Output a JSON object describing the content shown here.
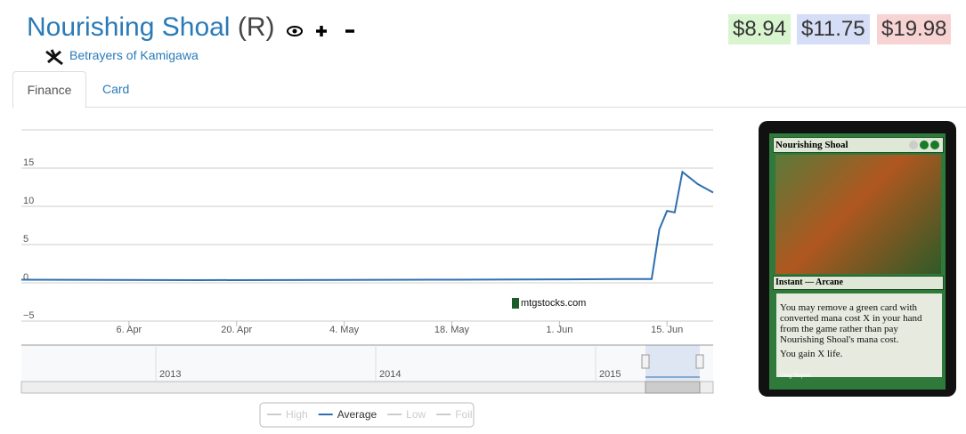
{
  "header": {
    "title": "Nourishing Shoal",
    "rarity": "(R)",
    "set": "Betrayers of Kamigawa",
    "prices": [
      "$8.94",
      "$11.75",
      "$19.98"
    ]
  },
  "tabs": [
    "Finance",
    "Card"
  ],
  "chart_data": {
    "type": "line",
    "x": [
      "03-23",
      "04-15",
      "05-15",
      "06-01",
      "06-09",
      "06-13",
      "06-14",
      "06-15",
      "06-16",
      "06-17",
      "06-19",
      "06-21"
    ],
    "xlim": [
      "03-23",
      "06-21"
    ],
    "xticks": [
      {
        "value": "04-06",
        "label": "6. Apr"
      },
      {
        "value": "04-20",
        "label": "20. Apr"
      },
      {
        "value": "05-04",
        "label": "4. May"
      },
      {
        "value": "05-18",
        "label": "18. May"
      },
      {
        "value": "06-01",
        "label": "1. Jun"
      },
      {
        "value": "06-15",
        "label": "15. Jun"
      }
    ],
    "ylim": [
      -5,
      20
    ],
    "yticks": [
      {
        "value": -5,
        "label": "−5"
      },
      0,
      5,
      10,
      15
    ],
    "grid": true,
    "series": [
      {
        "name": "High",
        "visible": false
      },
      {
        "name": "Average",
        "color": "#2f6fb0",
        "visible": true,
        "values": [
          0.4,
          0.35,
          0.4,
          0.45,
          0.5,
          0.5,
          7,
          9.4,
          9.2,
          14.5,
          12.9,
          11.8
        ]
      },
      {
        "name": "Low",
        "visible": false
      },
      {
        "name": "Foil",
        "visible": false
      }
    ],
    "watermark": "mtgstocks.com",
    "navigator": [
      "2013",
      "2014",
      "2015"
    ]
  },
  "card": {
    "name": "Nourishing Shoal",
    "type_line": "Instant — Arcane",
    "rules": [
      "You may remove a green card with converted mana cost X in your hand from the game rather than pay Nourishing Shoal's mana cost.",
      "You gain X life."
    ],
    "artist": "Greg Staples"
  }
}
